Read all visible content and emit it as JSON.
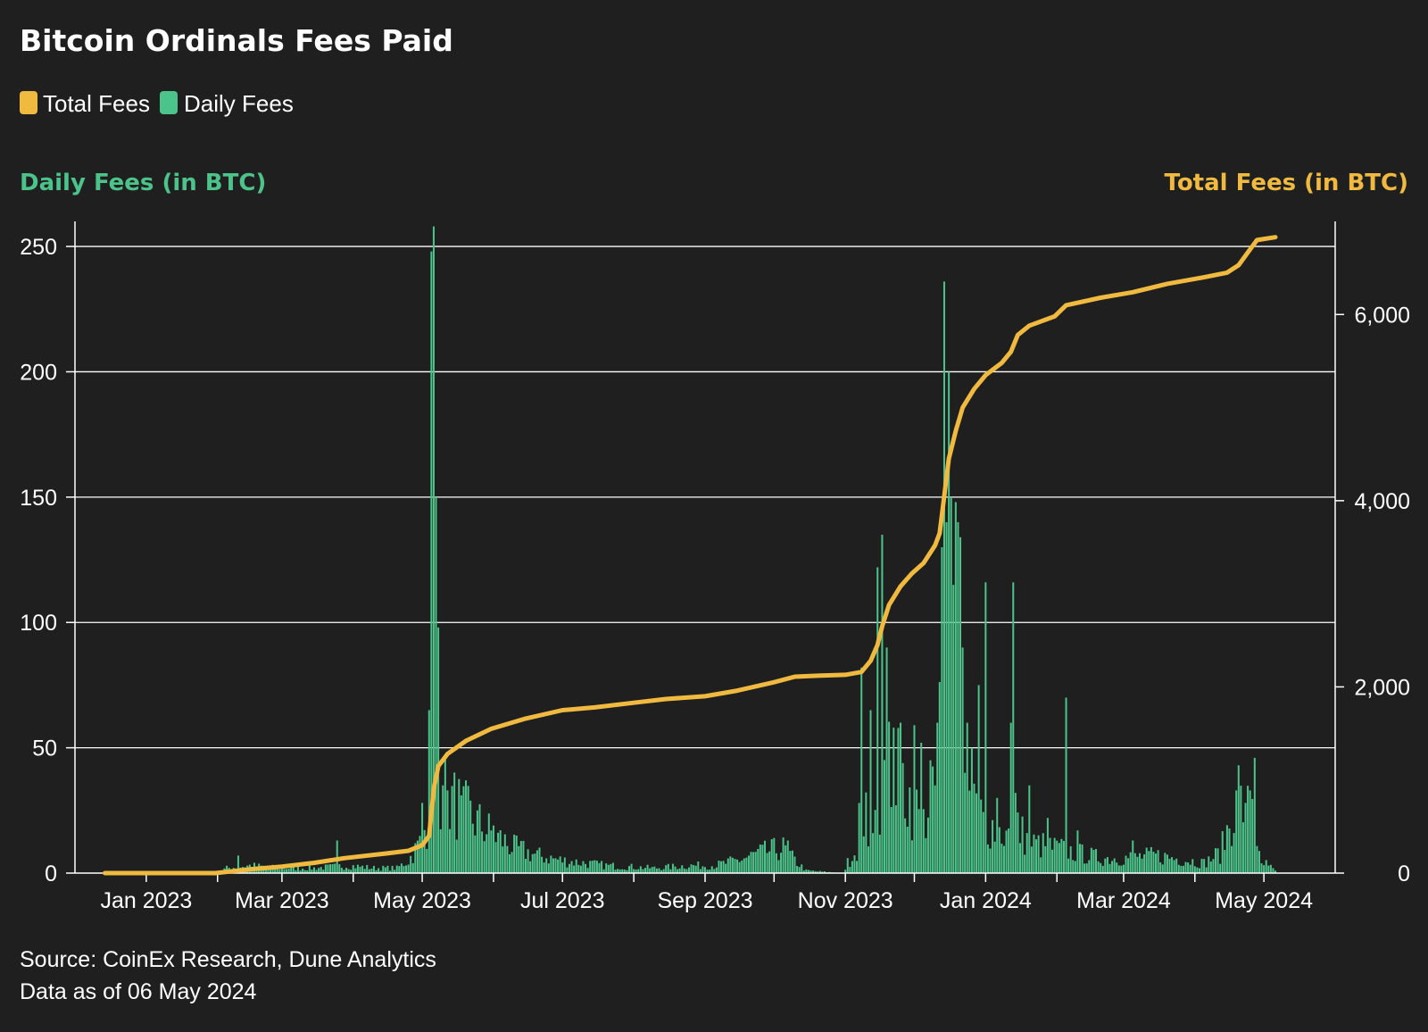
{
  "colors": {
    "background": "#1f1f1f",
    "total_fees": "#f0b93f",
    "daily_fees": "#4cc38a",
    "grid": "#ffffff",
    "text": "#ffffff"
  },
  "chart_data": {
    "type": "bar+line",
    "title": "Bitcoin Ordinals Fees Paid",
    "legend": {
      "placement": "top-left",
      "items": [
        {
          "label": "Total Fees",
          "color": "#f0b93f",
          "icon": "rounded-square"
        },
        {
          "label": "Daily Fees",
          "color": "#4cc38a",
          "icon": "rounded-square"
        }
      ]
    },
    "y_left": {
      "label": "Daily Fees (in BTC)",
      "range": [
        0,
        260
      ],
      "ticks": [
        0,
        50,
        100,
        150,
        200,
        250
      ],
      "tick_labels": [
        "0",
        "50",
        "100",
        "150",
        "200",
        "250"
      ]
    },
    "y_right": {
      "label": "Total Fees (in BTC)",
      "range": [
        0,
        7000
      ],
      "ticks": [
        0,
        2000,
        4000,
        6000
      ],
      "tick_labels": [
        "0",
        "2,000",
        "4,000",
        "6,000"
      ]
    },
    "x_axis": {
      "range": [
        "2022-12-01",
        "2024-06-01"
      ],
      "ticks": [
        "2023-01-01",
        "2023-03-01",
        "2023-05-01",
        "2023-07-01",
        "2023-09-01",
        "2023-11-01",
        "2024-01-01",
        "2024-03-01",
        "2024-05-01"
      ],
      "tick_labels": [
        "Jan 2023",
        "Mar 2023",
        "May 2023",
        "Jul 2023",
        "Sep 2023",
        "Nov 2023",
        "Jan 2024",
        "Mar 2024",
        "May 2024"
      ]
    },
    "grid": {
      "horizontal": true,
      "vertical": false
    },
    "series": [
      {
        "name": "Daily Fees",
        "type": "bar",
        "axis": "left",
        "color": "#4cc38a",
        "knots": [
          [
            "2022-12-14",
            0
          ],
          [
            "2023-01-31",
            0
          ],
          [
            "2023-02-05",
            2
          ],
          [
            "2023-02-15",
            3
          ],
          [
            "2023-02-28",
            2
          ],
          [
            "2023-03-15",
            2
          ],
          [
            "2023-03-30",
            3
          ],
          [
            "2023-04-10",
            2
          ],
          [
            "2023-04-20",
            2
          ],
          [
            "2023-04-25",
            5
          ],
          [
            "2023-04-30",
            12
          ],
          [
            "2023-05-05",
            25
          ],
          [
            "2023-05-10",
            32
          ],
          [
            "2023-05-15",
            28
          ],
          [
            "2023-05-20",
            24
          ],
          [
            "2023-05-25",
            20
          ],
          [
            "2023-05-31",
            16
          ],
          [
            "2023-06-10",
            10
          ],
          [
            "2023-06-20",
            7
          ],
          [
            "2023-07-01",
            5
          ],
          [
            "2023-07-20",
            3
          ],
          [
            "2023-08-10",
            2
          ],
          [
            "2023-08-25",
            3
          ],
          [
            "2023-09-05",
            3
          ],
          [
            "2023-09-15",
            5
          ],
          [
            "2023-09-25",
            8
          ],
          [
            "2023-10-05",
            10
          ],
          [
            "2023-10-10",
            5
          ],
          [
            "2023-10-15",
            1
          ],
          [
            "2023-10-31",
            0
          ],
          [
            "2023-11-05",
            5
          ],
          [
            "2023-11-10",
            22
          ],
          [
            "2023-11-15",
            30
          ],
          [
            "2023-11-20",
            42
          ],
          [
            "2023-11-25",
            38
          ],
          [
            "2023-11-30",
            28
          ],
          [
            "2023-12-05",
            20
          ],
          [
            "2023-12-10",
            38
          ],
          [
            "2023-12-15",
            70
          ],
          [
            "2023-12-20",
            50
          ],
          [
            "2023-12-25",
            30
          ],
          [
            "2023-12-31",
            22
          ],
          [
            "2024-01-05",
            18
          ],
          [
            "2024-01-10",
            15
          ],
          [
            "2024-01-15",
            18
          ],
          [
            "2024-01-20",
            12
          ],
          [
            "2024-01-31",
            10
          ],
          [
            "2024-02-10",
            8
          ],
          [
            "2024-02-20",
            6
          ],
          [
            "2024-03-01",
            6
          ],
          [
            "2024-03-15",
            7
          ],
          [
            "2024-03-30",
            5
          ],
          [
            "2024-04-05",
            4
          ],
          [
            "2024-04-12",
            8
          ],
          [
            "2024-04-18",
            25
          ],
          [
            "2024-04-22",
            28
          ],
          [
            "2024-04-26",
            22
          ],
          [
            "2024-04-30",
            5
          ],
          [
            "2024-05-06",
            1
          ]
        ],
        "spikes": [
          [
            "2023-02-10",
            7
          ],
          [
            "2023-03-25",
            13
          ],
          [
            "2023-05-01",
            28
          ],
          [
            "2023-05-04",
            65
          ],
          [
            "2023-05-05",
            248
          ],
          [
            "2023-05-06",
            258
          ],
          [
            "2023-05-07",
            150
          ],
          [
            "2023-05-08",
            98
          ],
          [
            "2023-05-10",
            35
          ],
          [
            "2023-05-12",
            33
          ],
          [
            "2023-05-18",
            31
          ],
          [
            "2023-06-01",
            19
          ],
          [
            "2023-10-07",
            13
          ],
          [
            "2023-11-02",
            6
          ],
          [
            "2023-11-07",
            28
          ],
          [
            "2023-11-08",
            82
          ],
          [
            "2023-11-12",
            65
          ],
          [
            "2023-11-15",
            122
          ],
          [
            "2023-11-17",
            135
          ],
          [
            "2023-11-19",
            90
          ],
          [
            "2023-11-22",
            58
          ],
          [
            "2023-11-25",
            60
          ],
          [
            "2023-12-01",
            59
          ],
          [
            "2023-12-04",
            52
          ],
          [
            "2023-12-08",
            45
          ],
          [
            "2023-12-10",
            35
          ],
          [
            "2023-12-11",
            60
          ],
          [
            "2023-12-13",
            130
          ],
          [
            "2023-12-14",
            236
          ],
          [
            "2023-12-15",
            140
          ],
          [
            "2023-12-16",
            200
          ],
          [
            "2023-12-17",
            150
          ],
          [
            "2023-12-18",
            115
          ],
          [
            "2023-12-19",
            148
          ],
          [
            "2023-12-20",
            140
          ],
          [
            "2023-12-21",
            134
          ],
          [
            "2023-12-22",
            90
          ],
          [
            "2023-12-24",
            60
          ],
          [
            "2023-12-26",
            50
          ],
          [
            "2023-12-29",
            75
          ],
          [
            "2024-01-01",
            116
          ],
          [
            "2024-01-06",
            30
          ],
          [
            "2024-01-12",
            60
          ],
          [
            "2024-01-13",
            116
          ],
          [
            "2024-01-14",
            32
          ],
          [
            "2024-01-20",
            35
          ],
          [
            "2024-01-28",
            22
          ],
          [
            "2024-02-05",
            70
          ],
          [
            "2024-02-10",
            17
          ],
          [
            "2024-03-05",
            13
          ],
          [
            "2024-04-20",
            43
          ],
          [
            "2024-04-23",
            28
          ],
          [
            "2024-04-25",
            33
          ],
          [
            "2024-04-27",
            46
          ],
          [
            "2024-05-03",
            3
          ]
        ]
      },
      {
        "name": "Total Fees",
        "type": "line",
        "axis": "right",
        "color": "#f0b93f",
        "points": [
          [
            "2022-12-14",
            0
          ],
          [
            "2023-01-31",
            0
          ],
          [
            "2023-02-15",
            40
          ],
          [
            "2023-03-01",
            70
          ],
          [
            "2023-03-15",
            110
          ],
          [
            "2023-03-28",
            160
          ],
          [
            "2023-04-15",
            210
          ],
          [
            "2023-04-25",
            240
          ],
          [
            "2023-05-01",
            300
          ],
          [
            "2023-05-04",
            400
          ],
          [
            "2023-05-06",
            900
          ],
          [
            "2023-05-08",
            1150
          ],
          [
            "2023-05-12",
            1280
          ],
          [
            "2023-05-20",
            1420
          ],
          [
            "2023-05-31",
            1550
          ],
          [
            "2023-06-15",
            1660
          ],
          [
            "2023-07-01",
            1750
          ],
          [
            "2023-07-15",
            1780
          ],
          [
            "2023-08-01",
            1830
          ],
          [
            "2023-08-15",
            1870
          ],
          [
            "2023-09-01",
            1900
          ],
          [
            "2023-09-15",
            1960
          ],
          [
            "2023-10-01",
            2050
          ],
          [
            "2023-10-10",
            2110
          ],
          [
            "2023-10-20",
            2120
          ],
          [
            "2023-11-01",
            2130
          ],
          [
            "2023-11-08",
            2160
          ],
          [
            "2023-11-12",
            2280
          ],
          [
            "2023-11-15",
            2450
          ],
          [
            "2023-11-17",
            2650
          ],
          [
            "2023-11-20",
            2880
          ],
          [
            "2023-11-25",
            3080
          ],
          [
            "2023-11-30",
            3220
          ],
          [
            "2023-12-05",
            3330
          ],
          [
            "2023-12-10",
            3520
          ],
          [
            "2023-12-12",
            3650
          ],
          [
            "2023-12-14",
            4050
          ],
          [
            "2023-12-16",
            4450
          ],
          [
            "2023-12-19",
            4750
          ],
          [
            "2023-12-22",
            5000
          ],
          [
            "2023-12-27",
            5200
          ],
          [
            "2024-01-01",
            5350
          ],
          [
            "2024-01-08",
            5480
          ],
          [
            "2024-01-12",
            5600
          ],
          [
            "2024-01-15",
            5780
          ],
          [
            "2024-01-20",
            5880
          ],
          [
            "2024-01-31",
            5980
          ],
          [
            "2024-02-05",
            6100
          ],
          [
            "2024-02-20",
            6180
          ],
          [
            "2024-03-05",
            6240
          ],
          [
            "2024-03-20",
            6330
          ],
          [
            "2024-04-05",
            6400
          ],
          [
            "2024-04-15",
            6450
          ],
          [
            "2024-04-20",
            6530
          ],
          [
            "2024-04-25",
            6700
          ],
          [
            "2024-04-28",
            6800
          ],
          [
            "2024-05-06",
            6830
          ]
        ]
      }
    ],
    "source_lines": [
      "Source: CoinEx Research, Dune Analytics",
      "Data as of 06 May 2024"
    ]
  }
}
